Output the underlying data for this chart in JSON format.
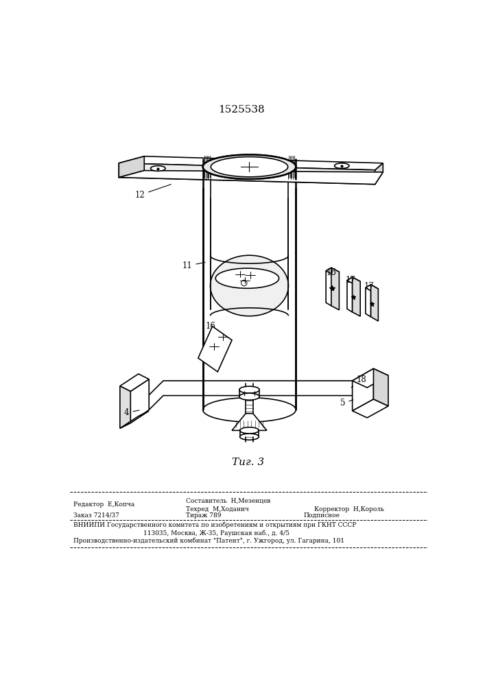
{
  "patent_number": "1525538",
  "figure_label": "Τиг. 3",
  "bg": "#ffffff",
  "lc": "#000000",
  "bottom_text": {
    "l1_left": "Редактор  Е,Копча",
    "l1_center": "Составитель  Н,Мезенцев",
    "l2_center": "Техред  М,Ходанич",
    "l2_right": "Корректор  Н,Король",
    "l3_left": "Заказ 7214/37",
    "l3_center": "Тираж 789",
    "l3_right": "Подписное",
    "l4": "ВНИИПИ Государственного комитета по изобретениям и открытиям при ГКНТ СССР",
    "l5": "113035, Москва, Ж-35, Раушская наб., д. 4/5",
    "l6": "Производственно-издательский комбинат \"Патент\", г. Ужгород, ул. Гагарина, 101"
  }
}
